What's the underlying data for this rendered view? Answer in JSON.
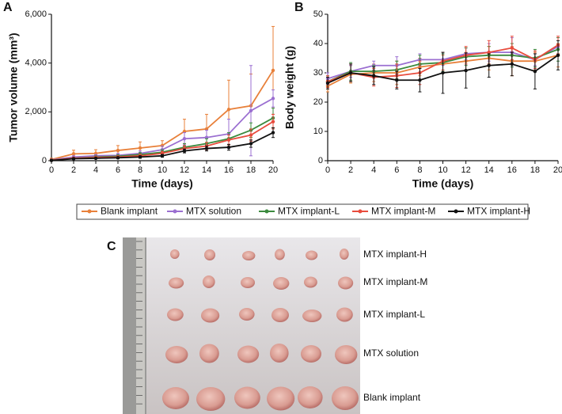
{
  "chart_data": [
    {
      "type": "line",
      "panel_label": "A",
      "x_label": "Time (days)",
      "y_label": "Tumor volume (mm³)",
      "x": [
        0,
        2,
        4,
        6,
        8,
        10,
        12,
        14,
        16,
        18,
        20
      ],
      "xlim": [
        0,
        20
      ],
      "xticks": [
        0,
        2,
        4,
        6,
        8,
        10,
        12,
        14,
        16,
        18,
        20
      ],
      "ylim": [
        0,
        6000
      ],
      "yticks": [
        0,
        {
          "value": 2000,
          "label": "2,000"
        },
        {
          "value": 4000,
          "label": "4,000"
        },
        {
          "value": 6000,
          "label": "6,000"
        }
      ],
      "series": [
        {
          "name": "Blank implant",
          "color": "#e8803a",
          "values": [
            50,
            280,
            300,
            420,
            520,
            620,
            1200,
            1300,
            2100,
            2250,
            3700
          ],
          "errors": [
            50,
            150,
            150,
            200,
            250,
            200,
            500,
            600,
            1200,
            1300,
            1800
          ]
        },
        {
          "name": "MTX solution",
          "color": "#9b6fd1",
          "values": [
            30,
            150,
            200,
            220,
            300,
            450,
            900,
            950,
            1100,
            2050,
            2550
          ],
          "errors": [
            20,
            50,
            50,
            80,
            100,
            150,
            250,
            300,
            600,
            1850,
            350
          ]
        },
        {
          "name": "MTX implant-L",
          "color": "#3b8a3e",
          "values": [
            20,
            100,
            150,
            180,
            250,
            350,
            550,
            700,
            900,
            1250,
            1750
          ],
          "errors": [
            20,
            40,
            50,
            60,
            80,
            100,
            150,
            200,
            250,
            300,
            400
          ]
        },
        {
          "name": "MTX implant-M",
          "color": "#e84c3d",
          "values": [
            20,
            100,
            130,
            150,
            200,
            300,
            500,
            600,
            850,
            1050,
            1600
          ],
          "errors": [
            20,
            40,
            40,
            50,
            60,
            80,
            120,
            150,
            200,
            250,
            300
          ]
        },
        {
          "name": "MTX implant-H",
          "color": "#111111",
          "values": [
            10,
            80,
            100,
            120,
            150,
            200,
            400,
            500,
            550,
            700,
            1150
          ],
          "errors": [
            10,
            30,
            30,
            40,
            50,
            60,
            80,
            100,
            120,
            150,
            200
          ]
        }
      ]
    },
    {
      "type": "line",
      "panel_label": "B",
      "x_label": "Time (days)",
      "y_label": "Body weight (g)",
      "x": [
        0,
        2,
        4,
        6,
        8,
        10,
        12,
        14,
        16,
        18,
        20
      ],
      "xlim": [
        0,
        20
      ],
      "xticks": [
        0,
        2,
        4,
        6,
        8,
        10,
        12,
        14,
        16,
        18,
        20
      ],
      "ylim": [
        0,
        50
      ],
      "yticks": [
        0,
        10,
        20,
        30,
        40,
        50
      ],
      "series": [
        {
          "color": "#e8803a",
          "values": [
            25.5,
            29.5,
            30,
            30,
            32,
            33,
            34,
            35,
            34,
            34,
            36
          ],
          "errors": [
            2,
            3,
            3,
            4,
            3,
            3,
            3,
            4,
            5,
            3,
            4
          ]
        },
        {
          "color": "#9b6fd1",
          "values": [
            28,
            30.5,
            32.5,
            32.5,
            34.5,
            34.5,
            36.5,
            37,
            37,
            34.5,
            39
          ],
          "errors": [
            2,
            2,
            1.5,
            3,
            2,
            2,
            2,
            3,
            5,
            2,
            3
          ]
        },
        {
          "color": "#3b8a3e",
          "values": [
            27,
            30.5,
            30.5,
            31,
            33,
            33.5,
            35.5,
            36,
            36,
            35,
            38
          ],
          "errors": [
            2,
            3,
            2,
            3,
            3,
            3,
            3,
            3,
            4,
            3,
            4
          ]
        },
        {
          "color": "#e84c3d",
          "values": [
            27,
            30,
            28.5,
            29,
            30,
            34,
            36,
            37,
            38.5,
            34.5,
            39.5
          ],
          "errors": [
            2,
            3,
            3,
            4,
            4,
            3,
            3,
            4,
            4,
            3,
            3
          ]
        },
        {
          "color": "#111111",
          "values": [
            26.5,
            30,
            29,
            27.5,
            27.5,
            30,
            30.8,
            32.5,
            33,
            30.5,
            36
          ],
          "errors": [
            2,
            3,
            3,
            3,
            4,
            7,
            6,
            4,
            4,
            6,
            5
          ]
        }
      ]
    }
  ],
  "photo_panel": {
    "label": "C",
    "rows": [
      "MTX implant-H",
      "MTX implant-M",
      "MTX implant-L",
      "MTX solution",
      "Blank implant"
    ]
  }
}
